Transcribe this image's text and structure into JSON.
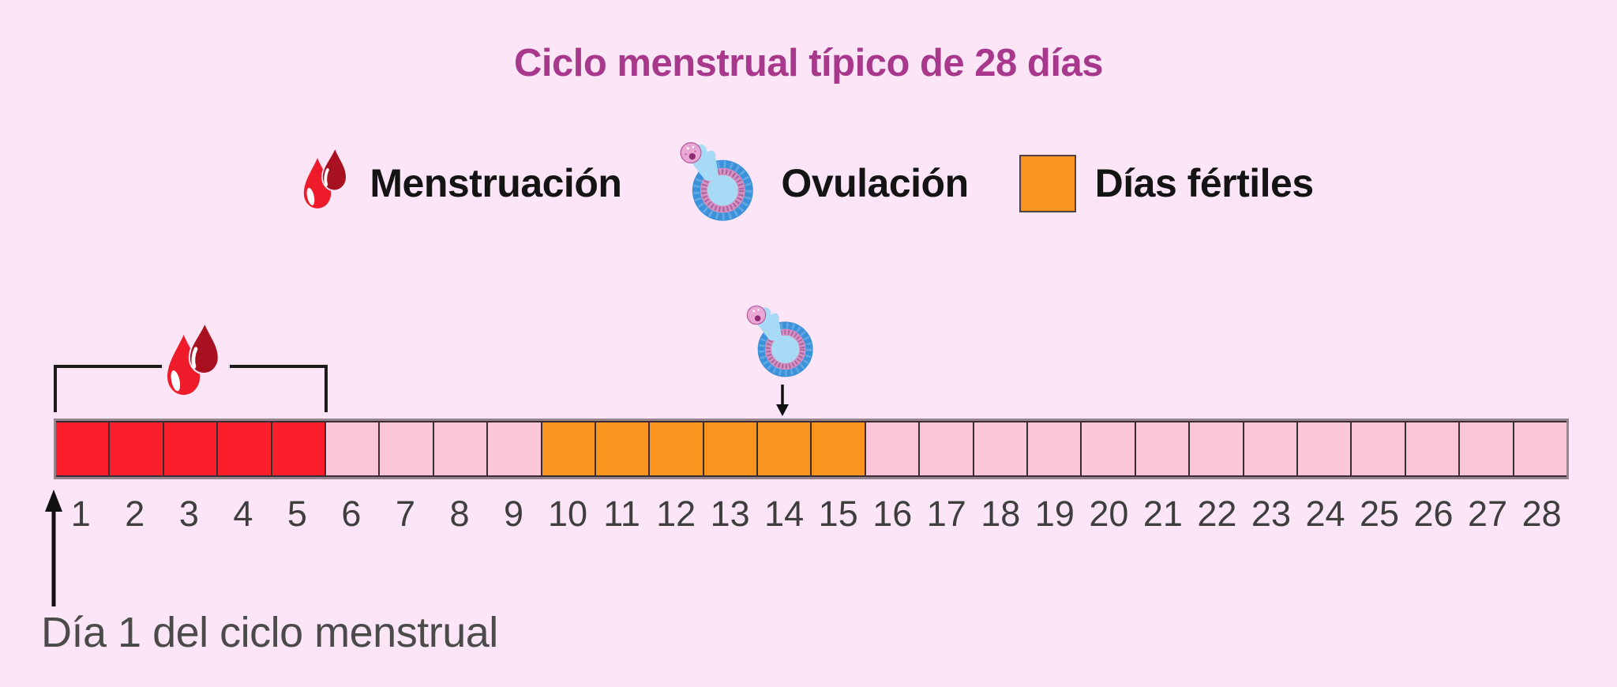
{
  "title": "Ciclo menstrual típico de 28 días",
  "legend": {
    "items": [
      {
        "icon": "blood-drop-icon",
        "label": "Menstruación"
      },
      {
        "icon": "ovum-icon",
        "label": "Ovulación"
      },
      {
        "icon": "fertile-days-swatch",
        "label": "Días fértiles",
        "swatch_color": "#f9941f"
      }
    ]
  },
  "caption": "Día 1 del ciclo menstrual",
  "chart_data": {
    "type": "timeline",
    "title": "Ciclo menstrual típico de 28 días",
    "total_days": 28,
    "day_labels": [
      "1",
      "2",
      "3",
      "4",
      "5",
      "6",
      "7",
      "8",
      "9",
      "10",
      "11",
      "12",
      "13",
      "14",
      "15",
      "16",
      "17",
      "18",
      "19",
      "20",
      "21",
      "22",
      "23",
      "24",
      "25",
      "26",
      "27",
      "28"
    ],
    "segments": [
      {
        "phase": "Menstruación",
        "day_start": 1,
        "day_end": 5,
        "color": "#fa1f2b"
      },
      {
        "phase": "",
        "day_start": 6,
        "day_end": 9,
        "color": "#fbc6da"
      },
      {
        "phase": "Días fértiles",
        "day_start": 10,
        "day_end": 15,
        "color": "#f9941f"
      },
      {
        "phase": "",
        "day_start": 16,
        "day_end": 28,
        "color": "#fbc6da"
      }
    ],
    "annotations": [
      {
        "name": "menstruation-bracket",
        "icon": "blood-drop-icon",
        "day_start": 1,
        "day_end": 5
      },
      {
        "name": "ovulation-marker",
        "icon": "ovum-icon",
        "day": 14
      },
      {
        "name": "day1-arrow",
        "label": "Día 1 del ciclo menstrual",
        "day": 1
      }
    ]
  },
  "colors": {
    "background": "#fce5f6",
    "title": "#a8388c",
    "menstruation": "#fa1f2b",
    "fertile": "#f9941f",
    "neutral_day": "#fbc6da",
    "cell_border": "#3a2c33",
    "bar_frame": "#97848e",
    "text_dark": "#3e3e3e"
  }
}
